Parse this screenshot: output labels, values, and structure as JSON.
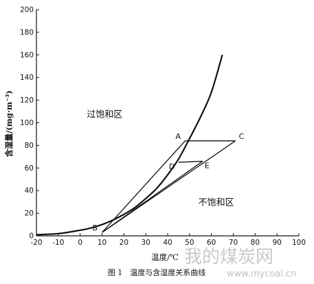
{
  "chart_data": {
    "type": "line",
    "xlabel": "温度/℃",
    "ylabel": "含湿量/(mg·m⁻³)",
    "xlim": [
      -20,
      100
    ],
    "ylim": [
      0,
      200
    ],
    "x_ticks": [
      -20,
      -10,
      0,
      10,
      20,
      30,
      40,
      50,
      60,
      70,
      80,
      90,
      100
    ],
    "y_ticks": [
      0,
      20,
      40,
      60,
      80,
      100,
      120,
      140,
      160,
      180,
      200
    ],
    "grid": false,
    "series": [
      {
        "kind": "curve",
        "points": [
          [
            -20,
            1
          ],
          [
            -10,
            2
          ],
          [
            0,
            5
          ],
          [
            5,
            7
          ],
          [
            10,
            10
          ],
          [
            15,
            14
          ],
          [
            20,
            19
          ],
          [
            25,
            25
          ],
          [
            30,
            33
          ],
          [
            35,
            42
          ],
          [
            40,
            54
          ],
          [
            45,
            68
          ],
          [
            50,
            86
          ],
          [
            55,
            105
          ],
          [
            60,
            127
          ],
          [
            65,
            160
          ]
        ]
      }
    ],
    "points": [
      {
        "label": "A",
        "x": 48,
        "y": 84
      },
      {
        "label": "B",
        "x": 10,
        "y": 3
      },
      {
        "label": "C",
        "x": 71,
        "y": 84
      },
      {
        "label": "D",
        "x": 45,
        "y": 65
      },
      {
        "label": "E",
        "x": 56,
        "y": 66
      }
    ],
    "segments": [
      {
        "from": "B",
        "to": "A"
      },
      {
        "from": "A",
        "to": "C"
      },
      {
        "from": "C",
        "to": "B"
      },
      {
        "from": "D",
        "to": "E"
      },
      {
        "from": "E",
        "to": "B"
      }
    ],
    "annotations": [
      {
        "text": "过饱和区",
        "x": 3,
        "y": 105
      },
      {
        "text": "不饱和区",
        "x": 54,
        "y": 27
      }
    ]
  },
  "caption": "图 1　温度与含湿度关系曲线",
  "watermark": {
    "text": "我的煤炭网",
    "url": "www.mycoal.cn"
  }
}
